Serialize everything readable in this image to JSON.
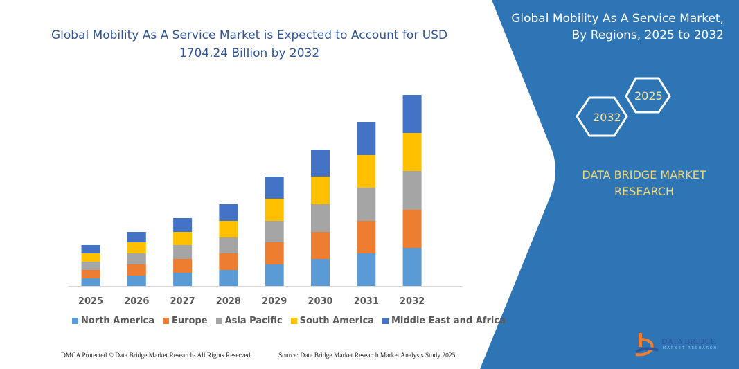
{
  "chart_data": {
    "type": "bar",
    "stacked": true,
    "title": "Global Mobility As A Service Market is Expected to Account for USD 1704.24 Billion by 2032",
    "categories": [
      "2025",
      "2026",
      "2027",
      "2028",
      "2029",
      "2030",
      "2031",
      "2032"
    ],
    "series": [
      {
        "name": "North America",
        "color": "#5b9bd5",
        "values": [
          11,
          15,
          19,
          23,
          31,
          39,
          47,
          55
        ]
      },
      {
        "name": "Europe",
        "color": "#ed7d31",
        "values": [
          12,
          16,
          20,
          24,
          32,
          39,
          47,
          55
        ]
      },
      {
        "name": "Asia Pacific",
        "color": "#a5a5a5",
        "values": [
          12,
          16,
          20,
          23,
          31,
          40,
          48,
          56
        ]
      },
      {
        "name": "South America",
        "color": "#ffc000",
        "values": [
          12,
          16,
          19,
          24,
          32,
          40,
          47,
          55
        ]
      },
      {
        "name": "Middle East and Africa",
        "color": "#4472c4",
        "values": [
          12,
          15,
          20,
          24,
          32,
          39,
          48,
          55
        ]
      }
    ],
    "yaxis_visible": false,
    "grid": false,
    "legend": "bottom"
  },
  "side_panel": {
    "title": "Global Mobility As A Service Market, By Regions, 2025 to 2032",
    "hex_start": "2025",
    "hex_end": "2032",
    "brand": "DATA BRIDGE MARKET RESEARCH",
    "color": "#2e75b6"
  },
  "logo": {
    "name": "DATA BRIDGE",
    "sub": "MARKET RESEARCH"
  },
  "footer": {
    "copyright": "DMCA Protected © Data Bridge Market Research-  All Rights Reserved.",
    "source": "Source: Data Bridge Market Research  Market Analysis Study 2025"
  }
}
